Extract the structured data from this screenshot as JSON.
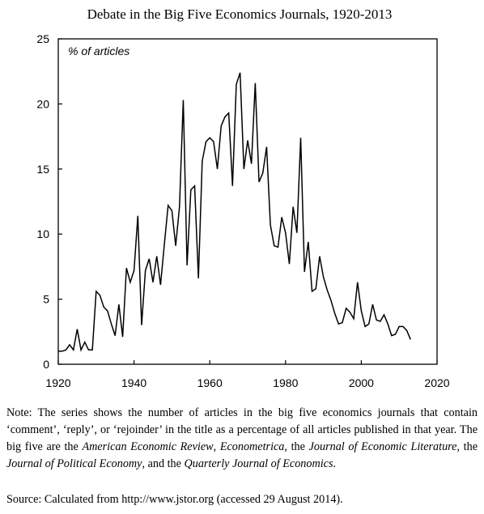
{
  "chart_data": {
    "type": "line",
    "title": "Debate in the Big Five Economics Journals, 1920-2013",
    "ylabel": "% of articles",
    "xlabel": "",
    "xlim": [
      1920,
      2020
    ],
    "ylim": [
      0,
      25
    ],
    "xticks": [
      "1920",
      "1940",
      "1960",
      "1980",
      "2000",
      "2020"
    ],
    "yticks": [
      "0",
      "5",
      "10",
      "15",
      "20",
      "25"
    ],
    "grid": false,
    "legend": "none",
    "line_color": "#000000",
    "x": [
      1920,
      1921,
      1922,
      1923,
      1924,
      1925,
      1926,
      1927,
      1928,
      1929,
      1930,
      1931,
      1932,
      1933,
      1934,
      1935,
      1936,
      1937,
      1938,
      1939,
      1940,
      1941,
      1942,
      1943,
      1944,
      1945,
      1946,
      1947,
      1948,
      1949,
      1950,
      1951,
      1952,
      1953,
      1954,
      1955,
      1956,
      1957,
      1958,
      1959,
      1960,
      1961,
      1962,
      1963,
      1964,
      1965,
      1966,
      1967,
      1968,
      1969,
      1970,
      1971,
      1972,
      1973,
      1974,
      1975,
      1976,
      1977,
      1978,
      1979,
      1980,
      1981,
      1982,
      1983,
      1984,
      1985,
      1986,
      1987,
      1988,
      1989,
      1990,
      1991,
      1992,
      1993,
      1994,
      1995,
      1996,
      1997,
      1998,
      1999,
      2000,
      2001,
      2002,
      2003,
      2004,
      2005,
      2006,
      2007,
      2008,
      2009,
      2010,
      2011,
      2012,
      2013
    ],
    "values": [
      1.0,
      1.0,
      1.1,
      1.5,
      1.1,
      2.7,
      1.1,
      1.7,
      1.1,
      1.1,
      5.6,
      5.3,
      4.4,
      4.1,
      3.1,
      2.2,
      4.6,
      2.1,
      7.4,
      6.3,
      7.2,
      11.4,
      3.0,
      7.2,
      8.1,
      6.3,
      8.3,
      6.1,
      9.2,
      12.2,
      11.8,
      9.1,
      12.1,
      20.3,
      7.6,
      13.4,
      13.7,
      6.6,
      15.6,
      17.1,
      17.4,
      17.1,
      15.0,
      18.3,
      19.0,
      19.3,
      13.7,
      21.5,
      22.4,
      15.0,
      17.2,
      15.4,
      21.6,
      14.0,
      14.7,
      16.7,
      10.7,
      9.1,
      9.0,
      11.3,
      10.1,
      7.7,
      12.1,
      10.1,
      17.4,
      7.1,
      9.4,
      5.6,
      5.8,
      8.3,
      6.7,
      5.7,
      4.9,
      3.9,
      3.1,
      3.2,
      4.3,
      4.0,
      3.5,
      6.3,
      4.1,
      2.9,
      3.1,
      4.6,
      3.4,
      3.3,
      3.8,
      3.1,
      2.2,
      2.3,
      2.9,
      2.9,
      2.6,
      1.9
    ]
  },
  "note": {
    "prefix": "Note:  The series shows the number of articles in the big five economics journals that contain ‘comment’, ‘reply’, or ‘rejoinder’ in the title as a percentage of all articles published in that year. The big five are the ",
    "journal_1": "American Economic Review",
    "sep_1": ", ",
    "journal_2": "Econometrica",
    "sep_2": ", the ",
    "journal_3": "Journal of Economic Literature",
    "sep_3": ", the ",
    "journal_4": "Journal of Political Economy",
    "sep_4": ", and the ",
    "journal_5": "Quarterly Journal of Economics",
    "suffix": "."
  },
  "source": "Source:  Calculated from http://www.jstor.org (accessed 29 August 2014)."
}
